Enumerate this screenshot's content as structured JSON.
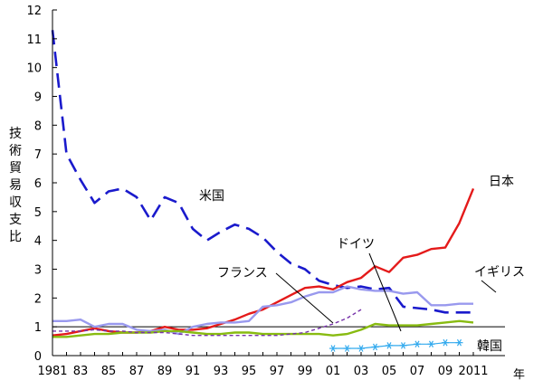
{
  "chart_data": {
    "type": "line",
    "title": "",
    "ylabel": "技術貿易収支比",
    "xlabel_unit": "年",
    "ylim": [
      0,
      12
    ],
    "xlim": [
      1981,
      2012
    ],
    "y_ticks": [
      "0",
      "1",
      "2",
      "3",
      "4",
      "5",
      "6",
      "7",
      "8",
      "9",
      "10",
      "11",
      "12"
    ],
    "x_ticks": [
      {
        "year": 1981,
        "label": "1981"
      },
      {
        "year": 1983,
        "label": "83"
      },
      {
        "year": 1985,
        "label": "85"
      },
      {
        "year": 1987,
        "label": "87"
      },
      {
        "year": 1989,
        "label": "89"
      },
      {
        "year": 1991,
        "label": "91"
      },
      {
        "year": 1993,
        "label": "93"
      },
      {
        "year": 1995,
        "label": "95"
      },
      {
        "year": 1997,
        "label": "97"
      },
      {
        "year": 1999,
        "label": "99"
      },
      {
        "year": 2001,
        "label": "01"
      },
      {
        "year": 2003,
        "label": "03"
      },
      {
        "year": 2005,
        "label": "05"
      },
      {
        "year": 2007,
        "label": "07"
      },
      {
        "year": 2009,
        "label": "09"
      },
      {
        "year": 2011,
        "label": "2011"
      }
    ],
    "reference_line": 1,
    "series": [
      {
        "name": "米国",
        "color": "#1a1acc",
        "style": "long-dash",
        "x": [
          1981,
          1982,
          1983,
          1984,
          1985,
          1986,
          1987,
          1988,
          1989,
          1990,
          1991,
          1992,
          1993,
          1994,
          1995,
          1996,
          1997,
          1998,
          1999,
          2000,
          2001,
          2002,
          2003,
          2004,
          2005,
          2006,
          2007,
          2008,
          2009,
          2010,
          2011
        ],
        "values": [
          11.3,
          7.0,
          6.1,
          5.3,
          5.7,
          5.8,
          5.5,
          4.7,
          5.5,
          5.3,
          4.4,
          4.0,
          4.3,
          4.55,
          4.4,
          4.1,
          3.6,
          3.2,
          3.0,
          2.6,
          2.45,
          2.35,
          2.4,
          2.3,
          2.35,
          1.7,
          1.65,
          1.6,
          1.5,
          1.5,
          1.5
        ]
      },
      {
        "name": "日本",
        "color": "#e41a1a",
        "style": "solid",
        "x": [
          1981,
          1982,
          1983,
          1984,
          1985,
          1986,
          1987,
          1988,
          1989,
          1990,
          1991,
          1992,
          1993,
          1994,
          1995,
          1996,
          1997,
          1998,
          1999,
          2000,
          2001,
          2002,
          2003,
          2004,
          2005,
          2006,
          2007,
          2008,
          2009,
          2010,
          2011
        ],
        "values": [
          0.7,
          0.75,
          0.85,
          0.95,
          0.85,
          0.8,
          0.8,
          0.85,
          1.0,
          0.9,
          0.9,
          0.95,
          1.1,
          1.25,
          1.45,
          1.6,
          1.85,
          2.1,
          2.35,
          2.4,
          2.3,
          2.55,
          2.7,
          3.1,
          2.9,
          3.4,
          3.5,
          3.7,
          3.75,
          4.6,
          5.8
        ]
      },
      {
        "name": "イギリス",
        "color": "#9999ee",
        "style": "solid",
        "x": [
          1981,
          1982,
          1983,
          1984,
          1985,
          1986,
          1987,
          1988,
          1989,
          1990,
          1991,
          1992,
          1993,
          1994,
          1995,
          1996,
          1997,
          1998,
          1999,
          2000,
          2001,
          2002,
          2003,
          2004,
          2005,
          2006,
          2007,
          2008,
          2009,
          2010,
          2011
        ],
        "values": [
          1.2,
          1.2,
          1.25,
          1.0,
          1.1,
          1.1,
          0.9,
          0.85,
          0.9,
          0.75,
          1.0,
          1.1,
          1.15,
          1.15,
          1.2,
          1.7,
          1.75,
          1.85,
          2.05,
          2.2,
          2.2,
          2.4,
          2.3,
          2.25,
          2.25,
          2.15,
          2.2,
          1.75,
          1.75,
          1.8,
          1.8
        ]
      },
      {
        "name": "ドイツ",
        "color": "#88bb11",
        "style": "solid",
        "x": [
          1981,
          1982,
          1983,
          1984,
          1985,
          1986,
          1987,
          1988,
          1989,
          1990,
          1991,
          1992,
          1993,
          1994,
          1995,
          1996,
          1997,
          1998,
          1999,
          2000,
          2001,
          2002,
          2003,
          2004,
          2005,
          2006,
          2007,
          2008,
          2009,
          2010,
          2011
        ],
        "values": [
          0.65,
          0.65,
          0.7,
          0.75,
          0.75,
          0.8,
          0.8,
          0.8,
          0.85,
          0.85,
          0.8,
          0.75,
          0.75,
          0.8,
          0.8,
          0.75,
          0.75,
          0.75,
          0.75,
          0.75,
          0.7,
          0.75,
          0.9,
          1.1,
          1.05,
          1.05,
          1.05,
          1.1,
          1.15,
          1.2,
          1.15
        ]
      },
      {
        "name": "フランス",
        "color": "#7733aa",
        "style": "dashed",
        "x": [
          1981,
          1982,
          1983,
          1984,
          1985,
          1986,
          1987,
          1988,
          1989,
          1990,
          1991,
          1992,
          1993,
          1994,
          1995,
          1996,
          1997,
          1998,
          1999,
          2000,
          2001,
          2002,
          2003
        ],
        "values": [
          0.85,
          0.85,
          0.85,
          0.9,
          0.85,
          0.85,
          0.8,
          0.8,
          0.8,
          0.75,
          0.7,
          0.7,
          0.7,
          0.7,
          0.7,
          0.7,
          0.7,
          0.75,
          0.8,
          0.95,
          1.1,
          1.3,
          1.6
        ]
      },
      {
        "name": "韓国",
        "color": "#33aaee",
        "style": "star-marker",
        "x": [
          2001,
          2002,
          2003,
          2004,
          2005,
          2006,
          2007,
          2008,
          2009,
          2010
        ],
        "values": [
          0.25,
          0.25,
          0.25,
          0.3,
          0.35,
          0.35,
          0.4,
          0.4,
          0.45,
          0.45
        ]
      }
    ]
  }
}
